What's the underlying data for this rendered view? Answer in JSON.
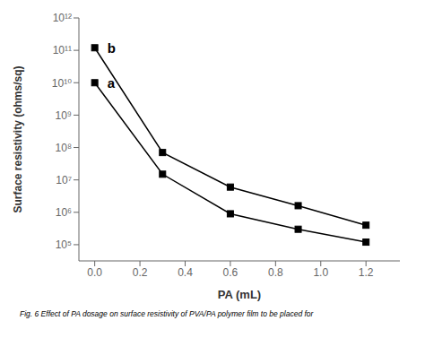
{
  "chart_data": {
    "type": "line",
    "log": "y",
    "grid": false,
    "xlabel": "PA (mL)",
    "ylabel": "Surface resistivity (ohms/sq)",
    "caption": "Fig. 6  Effect of PA dosage on surface resistivity of PVA/PA polymer film to be placed for",
    "x": [
      0.0,
      0.3,
      0.6,
      0.9,
      1.2
    ],
    "series": [
      {
        "name": "a",
        "color": "#000000",
        "marker": "square",
        "values": [
          10000000000.0,
          15000000.0,
          900000.0,
          300000.0,
          120000.0
        ]
      },
      {
        "name": "b",
        "color": "#000000",
        "marker": "square",
        "values": [
          120000000000.0,
          70000000.0,
          6000000.0,
          1600000.0,
          400000.0
        ]
      }
    ],
    "xlim": [
      -0.07,
      1.35
    ],
    "xticks": [
      {
        "value": 0.0,
        "label": "0.0"
      },
      0.2,
      0.4,
      0.6,
      0.8,
      {
        "value": 1.0,
        "label": "1.0"
      },
      1.2
    ],
    "ylim": [
      31622.776601683792,
      1000000000000.0
    ],
    "yticks": [
      {
        "value": 100000,
        "label": "10⁵"
      },
      {
        "value": 1000000,
        "label": "10⁶"
      },
      {
        "value": 10000000,
        "label": "10⁷"
      },
      {
        "value": 100000000,
        "label": "10⁸"
      },
      {
        "value": 1000000000,
        "label": "10⁹"
      },
      {
        "value": 10000000000,
        "label": "10¹⁰"
      },
      {
        "value": 100000000000,
        "label": "10¹¹"
      },
      {
        "value": 1000000000000,
        "label": "10¹²"
      }
    ],
    "annotations": [
      {
        "text": "a",
        "x": 0.04,
        "y": 10000000000.0
      },
      {
        "text": "b",
        "x": 0.04,
        "y": 120000000000.0
      }
    ]
  }
}
